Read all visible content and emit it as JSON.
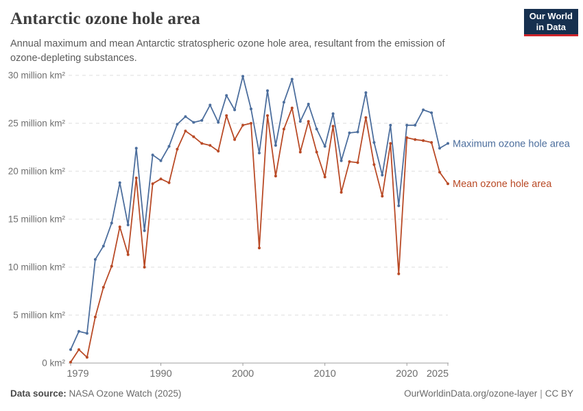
{
  "logo": {
    "line1": "Our World",
    "line2": "in Data"
  },
  "chart_data": {
    "type": "line",
    "title": "Antarctic ozone hole area",
    "subtitle": "Annual maximum and mean Antarctic stratospheric ozone hole area, resultant from the emission of ozone-depleting substances.",
    "unit": "million km²",
    "grid": "horizontal-dashed",
    "legend": "end-of-line-labels",
    "xlim": [
      1979,
      2025
    ],
    "ylim": [
      0,
      30
    ],
    "xticks": [
      1979,
      1990,
      2000,
      2010,
      2020,
      2025
    ],
    "yticks": [
      {
        "value": 0,
        "label": "0 km²"
      },
      {
        "value": 5,
        "label": "5 million km²"
      },
      {
        "value": 10,
        "label": "10 million km²"
      },
      {
        "value": 15,
        "label": "15 million km²"
      },
      {
        "value": 20,
        "label": "20 million km²"
      },
      {
        "value": 25,
        "label": "25 million km²"
      },
      {
        "value": 30,
        "label": "30 million km²"
      }
    ],
    "years": [
      1979,
      1980,
      1981,
      1982,
      1983,
      1984,
      1985,
      1986,
      1987,
      1988,
      1989,
      1990,
      1991,
      1992,
      1993,
      1994,
      1995,
      1996,
      1997,
      1998,
      1999,
      2000,
      2001,
      2002,
      2003,
      2004,
      2005,
      2006,
      2007,
      2008,
      2009,
      2010,
      2011,
      2012,
      2013,
      2014,
      2015,
      2016,
      2017,
      2018,
      2019,
      2020,
      2021,
      2022,
      2023,
      2024,
      2025
    ],
    "series": [
      {
        "id": "maximum",
        "name": "Maximum ozone hole area",
        "color": "#4C6E9D",
        "values": [
          1.4,
          3.3,
          3.1,
          10.8,
          12.2,
          14.6,
          18.8,
          14.4,
          22.4,
          13.8,
          21.7,
          21.1,
          22.6,
          24.9,
          25.7,
          25.1,
          25.3,
          26.9,
          25.1,
          27.9,
          26.4,
          29.9,
          26.5,
          21.9,
          28.4,
          22.7,
          27.2,
          29.6,
          25.2,
          27.0,
          24.4,
          22.6,
          26.0,
          21.1,
          24.0,
          24.1,
          28.2,
          23.0,
          19.6,
          24.8,
          16.4,
          24.8,
          24.8,
          26.4,
          26.1,
          22.4,
          22.9
        ]
      },
      {
        "id": "mean",
        "name": "Mean ozone hole area",
        "color": "#B94A26",
        "values": [
          0.1,
          1.4,
          0.6,
          4.8,
          7.9,
          10.1,
          14.2,
          11.3,
          19.3,
          10.0,
          18.7,
          19.2,
          18.8,
          22.3,
          24.2,
          23.6,
          22.9,
          22.7,
          22.1,
          25.8,
          23.3,
          24.8,
          25.0,
          12.0,
          25.8,
          19.5,
          24.4,
          26.6,
          22.0,
          25.2,
          22.0,
          19.4,
          24.7,
          17.8,
          21.0,
          20.9,
          25.6,
          20.7,
          17.4,
          22.9,
          9.3,
          23.5,
          23.3,
          23.2,
          23.0,
          19.9,
          18.7
        ]
      }
    ]
  },
  "footer": {
    "source_label": "Data source:",
    "source_value": "NASA Ozone Watch (2025)",
    "url": "OurWorldinData.org/ozone-layer",
    "separator": "|",
    "license": "CC BY"
  }
}
